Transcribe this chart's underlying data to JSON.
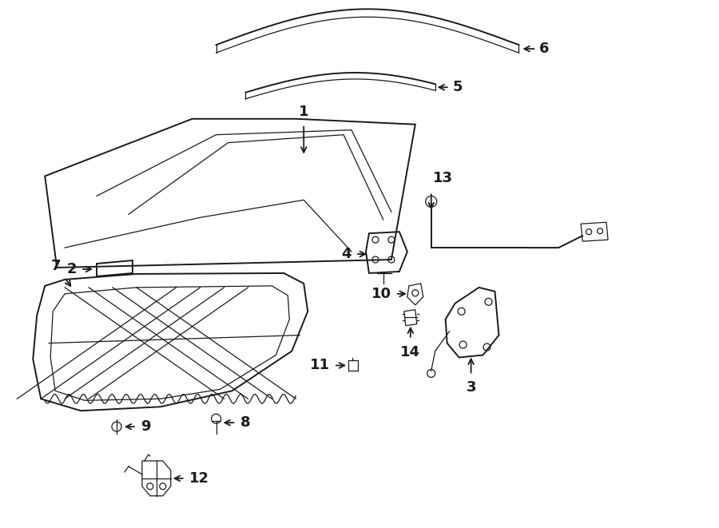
{
  "bg_color": "#ffffff",
  "line_color": "#1a1a1a",
  "fig_width": 9.0,
  "fig_height": 6.61,
  "dpi": 100,
  "label_fontsize": 13
}
